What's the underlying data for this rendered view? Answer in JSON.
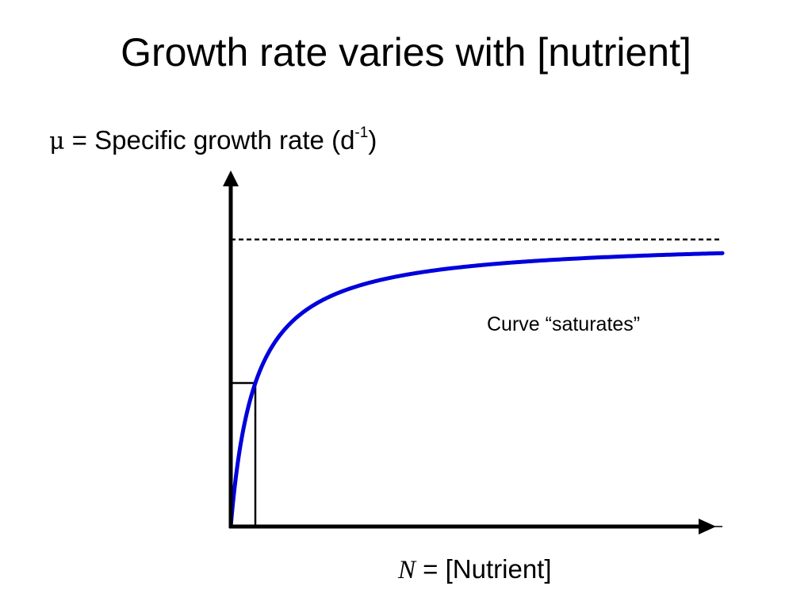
{
  "slide": {
    "title": "Growth rate varies with [nutrient]"
  },
  "chart_data": {
    "type": "line",
    "title": "Growth rate varies with [nutrient]",
    "ylabel": {
      "symbol": "μ",
      "text": " = Specific growth rate (d",
      "superscript": "-1",
      "close": ")"
    },
    "xlabel": {
      "symbol": "N",
      "text": " = [Nutrient]"
    },
    "annotation": "Curve “saturates”",
    "model": "saturating",
    "mu_max": 1.0,
    "half_saturation": 0.05,
    "xlim": [
      0,
      1
    ],
    "ylim": [
      0,
      1.2
    ],
    "asymptote": {
      "value": 1.0,
      "style": "dashed"
    },
    "half_saturation_marker": {
      "x": 0.05,
      "y": 0.5
    },
    "ticks": false,
    "grid": false,
    "curve_color": "#0000dd",
    "axis_color": "#000000"
  }
}
